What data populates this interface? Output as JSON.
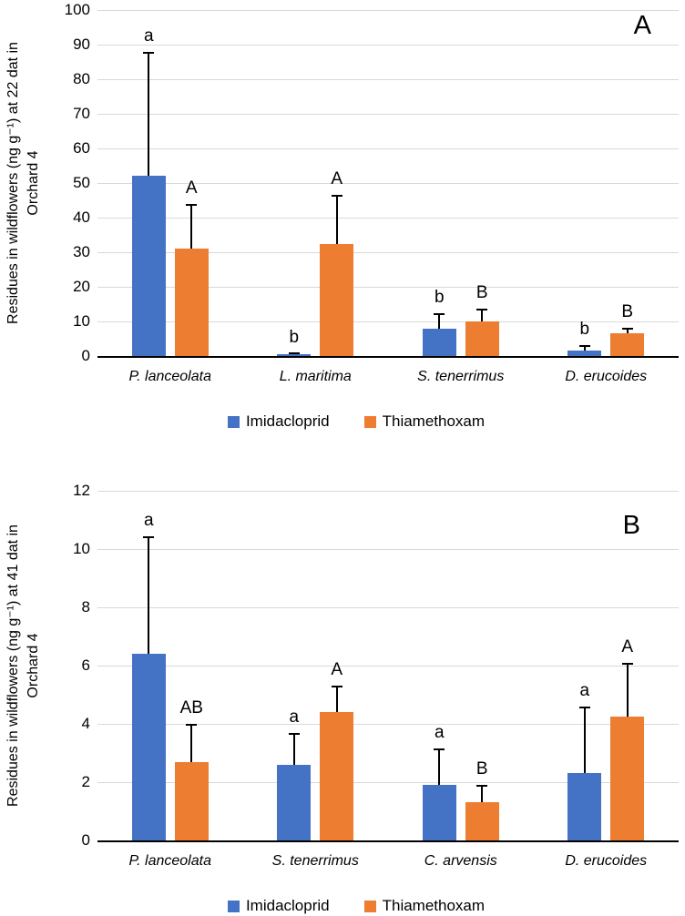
{
  "chart_data": [
    {
      "type": "bar",
      "panel_label": "A",
      "ylabel": "Residues in wildflowers (ng g⁻¹) at 22 dat in Orchard 4",
      "ylabel_lines": [
        "Residues in wildflowers (ng g⁻¹) at 22 dat in",
        "Orchard 4"
      ],
      "ylim": [
        0,
        100
      ],
      "yticks": [
        0,
        10,
        20,
        30,
        40,
        50,
        60,
        70,
        80,
        90,
        100
      ],
      "grid": true,
      "legend_position": "bottom",
      "categories": [
        "P. lanceolata",
        "L. maritima",
        "S. tenerrimus",
        "D. erucoides"
      ],
      "series": [
        {
          "name": "Imidacloprid",
          "color": "#4472C4",
          "values": [
            52,
            0.4,
            7.8,
            1.5
          ],
          "errors_plus": [
            36,
            0.4,
            4.5,
            1.7
          ],
          "letters": [
            "a",
            "b",
            "b",
            "b"
          ]
        },
        {
          "name": "Thiamethoxam",
          "color": "#ED7D31",
          "values": [
            31,
            32.5,
            10,
            6.5
          ],
          "errors_plus": [
            13,
            14,
            3.7,
            1.6
          ],
          "letters": [
            "A",
            "A",
            "B",
            "B"
          ]
        }
      ]
    },
    {
      "type": "bar",
      "panel_label": "B",
      "ylabel": "Residues in wildflowers (ng g⁻¹) at 41 dat in Orchard 4",
      "ylabel_lines": [
        "Residues in wildflowers (ng g⁻¹) at 41 dat in",
        "Orchard 4"
      ],
      "ylim": [
        0,
        12
      ],
      "yticks": [
        0,
        2,
        4,
        6,
        8,
        10,
        12
      ],
      "grid": true,
      "legend_position": "bottom",
      "categories": [
        "P. lanceolata",
        "S. tenerrimus",
        "C. arvensis",
        "D. erucoides"
      ],
      "series": [
        {
          "name": "Imidacloprid",
          "color": "#4472C4",
          "values": [
            6.4,
            2.6,
            1.9,
            2.3
          ],
          "errors_plus": [
            4.05,
            1.1,
            1.25,
            2.3
          ],
          "letters": [
            "a",
            "a",
            "a",
            "a"
          ]
        },
        {
          "name": "Thiamethoxam",
          "color": "#ED7D31",
          "values": [
            2.7,
            4.4,
            1.3,
            4.25
          ],
          "errors_plus": [
            1.3,
            0.9,
            0.6,
            1.85
          ],
          "letters": [
            "AB",
            "A",
            "B",
            "A"
          ]
        }
      ]
    }
  ]
}
